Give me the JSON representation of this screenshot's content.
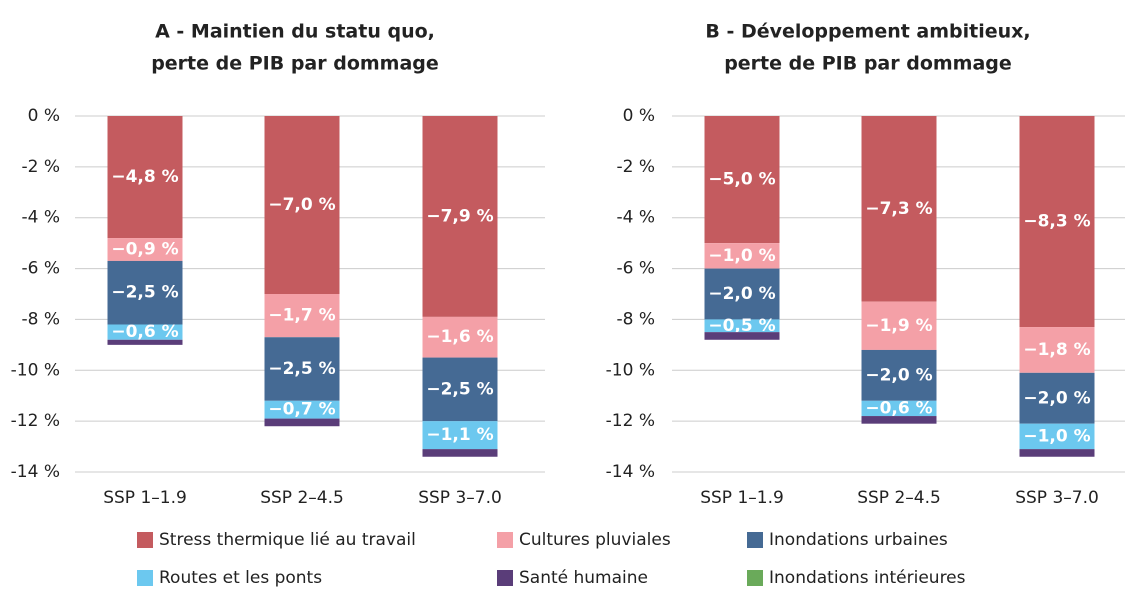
{
  "chart_data": [
    {
      "type": "stacked_bar",
      "title": [
        "A - Maintien du statu quo,",
        "perte de PIB par dommage"
      ],
      "categories": [
        "SSP 1–1.9",
        "SSP 2–4.5",
        "SSP 3–7.0"
      ],
      "ylim": [
        0,
        -14
      ],
      "yticks": [
        {
          "value": 0,
          "label": "0 %"
        },
        {
          "value": -2,
          "label": "-2 %"
        },
        {
          "value": -4,
          "label": "-4 %"
        },
        {
          "value": -6,
          "label": "-6 %"
        },
        {
          "value": -8,
          "label": "-8 %"
        },
        {
          "value": -10,
          "label": "-10 %"
        },
        {
          "value": -12,
          "label": "-12 %"
        },
        {
          "value": -14,
          "label": "-14 %"
        }
      ],
      "grid": true,
      "series": [
        {
          "name": "Stress thermique lié au travail",
          "color": "#c45b5f",
          "values": [
            -4.8,
            -7.0,
            -7.9
          ],
          "value_labels": [
            "−4,8 %",
            "−7,0 %",
            "−7,9 %"
          ]
        },
        {
          "name": "Cultures pluviales",
          "color": "#f4a0a7",
          "values": [
            -0.9,
            -1.7,
            -1.6
          ],
          "value_labels": [
            "−0,9 %",
            "−1,7 %",
            "−1,6 %"
          ]
        },
        {
          "name": "Inondations urbaines",
          "color": "#456a94",
          "values": [
            -2.5,
            -2.5,
            -2.5
          ],
          "value_labels": [
            "−2,5 %",
            "−2,5 %",
            "−2,5 %"
          ]
        },
        {
          "name": "Routes et les ponts",
          "color": "#6cc8ef",
          "values": [
            -0.6,
            -0.7,
            -1.1
          ],
          "value_labels": [
            "−0,6 %",
            "−0,7 %",
            "−1,1 %"
          ]
        },
        {
          "name": "Santé humaine",
          "color": "#5a3d79",
          "values": [
            -0.2,
            -0.3,
            -0.3
          ]
        },
        {
          "name": "Inondations intérieures",
          "color": "#6aaa5a",
          "values": [
            0,
            0,
            0
          ]
        }
      ]
    },
    {
      "type": "stacked_bar",
      "title": [
        "B - Développement ambitieux,",
        "perte de PIB par dommage"
      ],
      "categories": [
        "SSP 1–1.9",
        "SSP 2–4.5",
        "SSP 3–7.0"
      ],
      "ylim": [
        0,
        -14
      ],
      "yticks": [
        {
          "value": 0,
          "label": "0 %"
        },
        {
          "value": -2,
          "label": "-2 %"
        },
        {
          "value": -4,
          "label": "-4 %"
        },
        {
          "value": -6,
          "label": "-6 %"
        },
        {
          "value": -8,
          "label": "-8 %"
        },
        {
          "value": -10,
          "label": "-10 %"
        },
        {
          "value": -12,
          "label": "-12 %"
        },
        {
          "value": -14,
          "label": "-14 %"
        }
      ],
      "grid": true,
      "series": [
        {
          "values": [
            -5.0,
            -7.3,
            -8.3
          ],
          "value_labels": [
            "−5,0 %",
            "−7,3 %",
            "−8,3 %"
          ]
        },
        {
          "values": [
            -1.0,
            -1.9,
            -1.8
          ],
          "value_labels": [
            "−1,0 %",
            "−1,9 %",
            "−1,8 %"
          ]
        },
        {
          "values": [
            -2.0,
            -2.0,
            -2.0
          ],
          "value_labels": [
            "−2,0 %",
            "−2,0 %",
            "−2,0 %"
          ]
        },
        {
          "values": [
            -0.5,
            -0.6,
            -1.0
          ],
          "value_labels": [
            "−0,5 %",
            "−0,6 %",
            "−1,0 %"
          ]
        },
        {
          "values": [
            -0.3,
            -0.3,
            -0.3
          ]
        },
        {
          "values": [
            0,
            0,
            0
          ]
        }
      ]
    }
  ]
}
